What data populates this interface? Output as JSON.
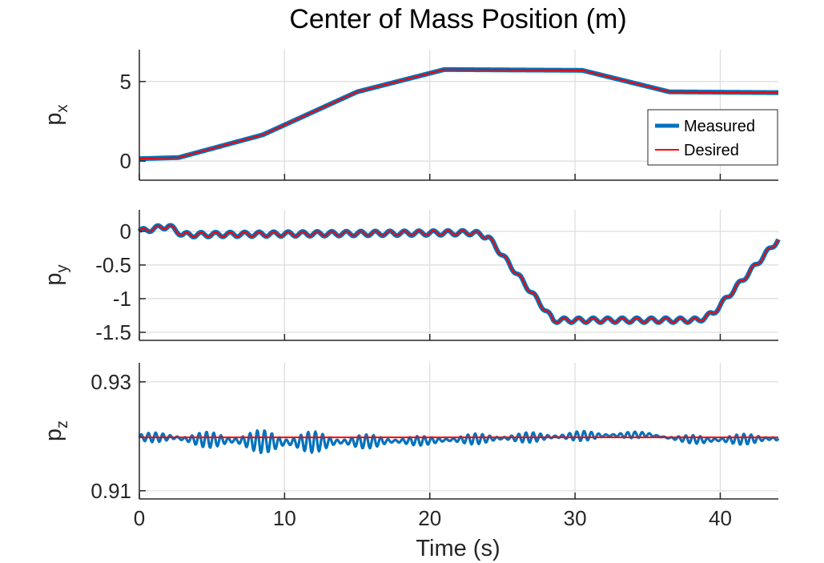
{
  "chart_data": {
    "type": "line",
    "title": "Center of Mass Position (m)",
    "xlabel": "Time (s)",
    "xlim": [
      0,
      44
    ],
    "xticks": [
      0,
      10,
      20,
      30,
      40
    ],
    "xtick_labels": [
      "0",
      "10",
      "20",
      "30",
      "40"
    ],
    "grid": true,
    "legend": {
      "placement": "right (top panel)",
      "entries": [
        "Measured",
        "Desired"
      ]
    },
    "colors": {
      "measured": "#0072BD",
      "desired": "#FF0000",
      "axis": "#262626",
      "grid": "#dcdcdc"
    },
    "subplots": [
      {
        "ylabel": "p",
        "ylabel_sub": "x",
        "ylim": [
          -1.2,
          7.0
        ],
        "yticks": [
          0,
          5
        ],
        "ytick_labels": [
          "0",
          "5"
        ],
        "series": [
          {
            "name": "Measured",
            "x": [
              0,
              2.7,
              8.5,
              15,
              21,
              30.5,
              36.5,
              44
            ],
            "y": [
              0.15,
              0.22,
              1.65,
              4.35,
              5.75,
              5.7,
              4.35,
              4.3
            ]
          },
          {
            "name": "Desired",
            "x": [
              0,
              2.7,
              8.5,
              15,
              21,
              30.5,
              36.5,
              44
            ],
            "y": [
              0.15,
              0.22,
              1.65,
              4.35,
              5.75,
              5.7,
              4.35,
              4.3
            ]
          }
        ]
      },
      {
        "ylabel": "p",
        "ylabel_sub": "y",
        "ylim": [
          -1.62,
          0.32
        ],
        "yticks": [
          -1.5,
          -1,
          -0.5,
          0
        ],
        "ytick_labels": [
          "-1.5",
          "-1",
          "-0.5",
          "0"
        ],
        "series": [
          {
            "name": "Measured",
            "x": [
              0,
              2,
              3,
              23,
              24,
              28.5,
              38.5,
              39.5,
              44
            ],
            "y": [
              0.0,
              0.08,
              -0.05,
              -0.02,
              -0.08,
              -1.32,
              -1.32,
              -1.22,
              -0.12
            ],
            "wiggle": 0.035,
            "period": 1.0
          },
          {
            "name": "Desired",
            "x": [
              0,
              2,
              3,
              23,
              24,
              28.5,
              38.5,
              39.5,
              44
            ],
            "y": [
              0.0,
              0.08,
              -0.05,
              -0.02,
              -0.08,
              -1.32,
              -1.32,
              -1.22,
              -0.12
            ],
            "wiggle": 0.035,
            "period": 1.0
          }
        ]
      },
      {
        "ylabel": "p",
        "ylabel_sub": "z",
        "ylim": [
          0.9085,
          0.9335
        ],
        "yticks": [
          0.91,
          0.93
        ],
        "ytick_labels": [
          "0.91",
          "0.93"
        ],
        "series": [
          {
            "name": "Measured",
            "x": [
              0,
              2.5,
              3,
              8,
              9.5,
              14,
              20,
              23,
              31,
              35,
              36.5,
              39,
              44
            ],
            "y": [
              0.9198,
              0.9198,
              0.9195,
              0.9191,
              0.9189,
              0.919,
              0.9192,
              0.9195,
              0.9201,
              0.9203,
              0.9197,
              0.9193,
              0.9196
            ],
            "noise": [
              0.0008,
              0.001,
              0.0012,
              0.002,
              0.0025,
              0.0015,
              0.0008,
              0.001,
              0.0009,
              0.0005,
              0.0004,
              0.001,
              0.001
            ]
          },
          {
            "name": "Desired",
            "x": [
              0,
              44
            ],
            "y": [
              0.9198,
              0.9198
            ]
          }
        ]
      }
    ]
  }
}
